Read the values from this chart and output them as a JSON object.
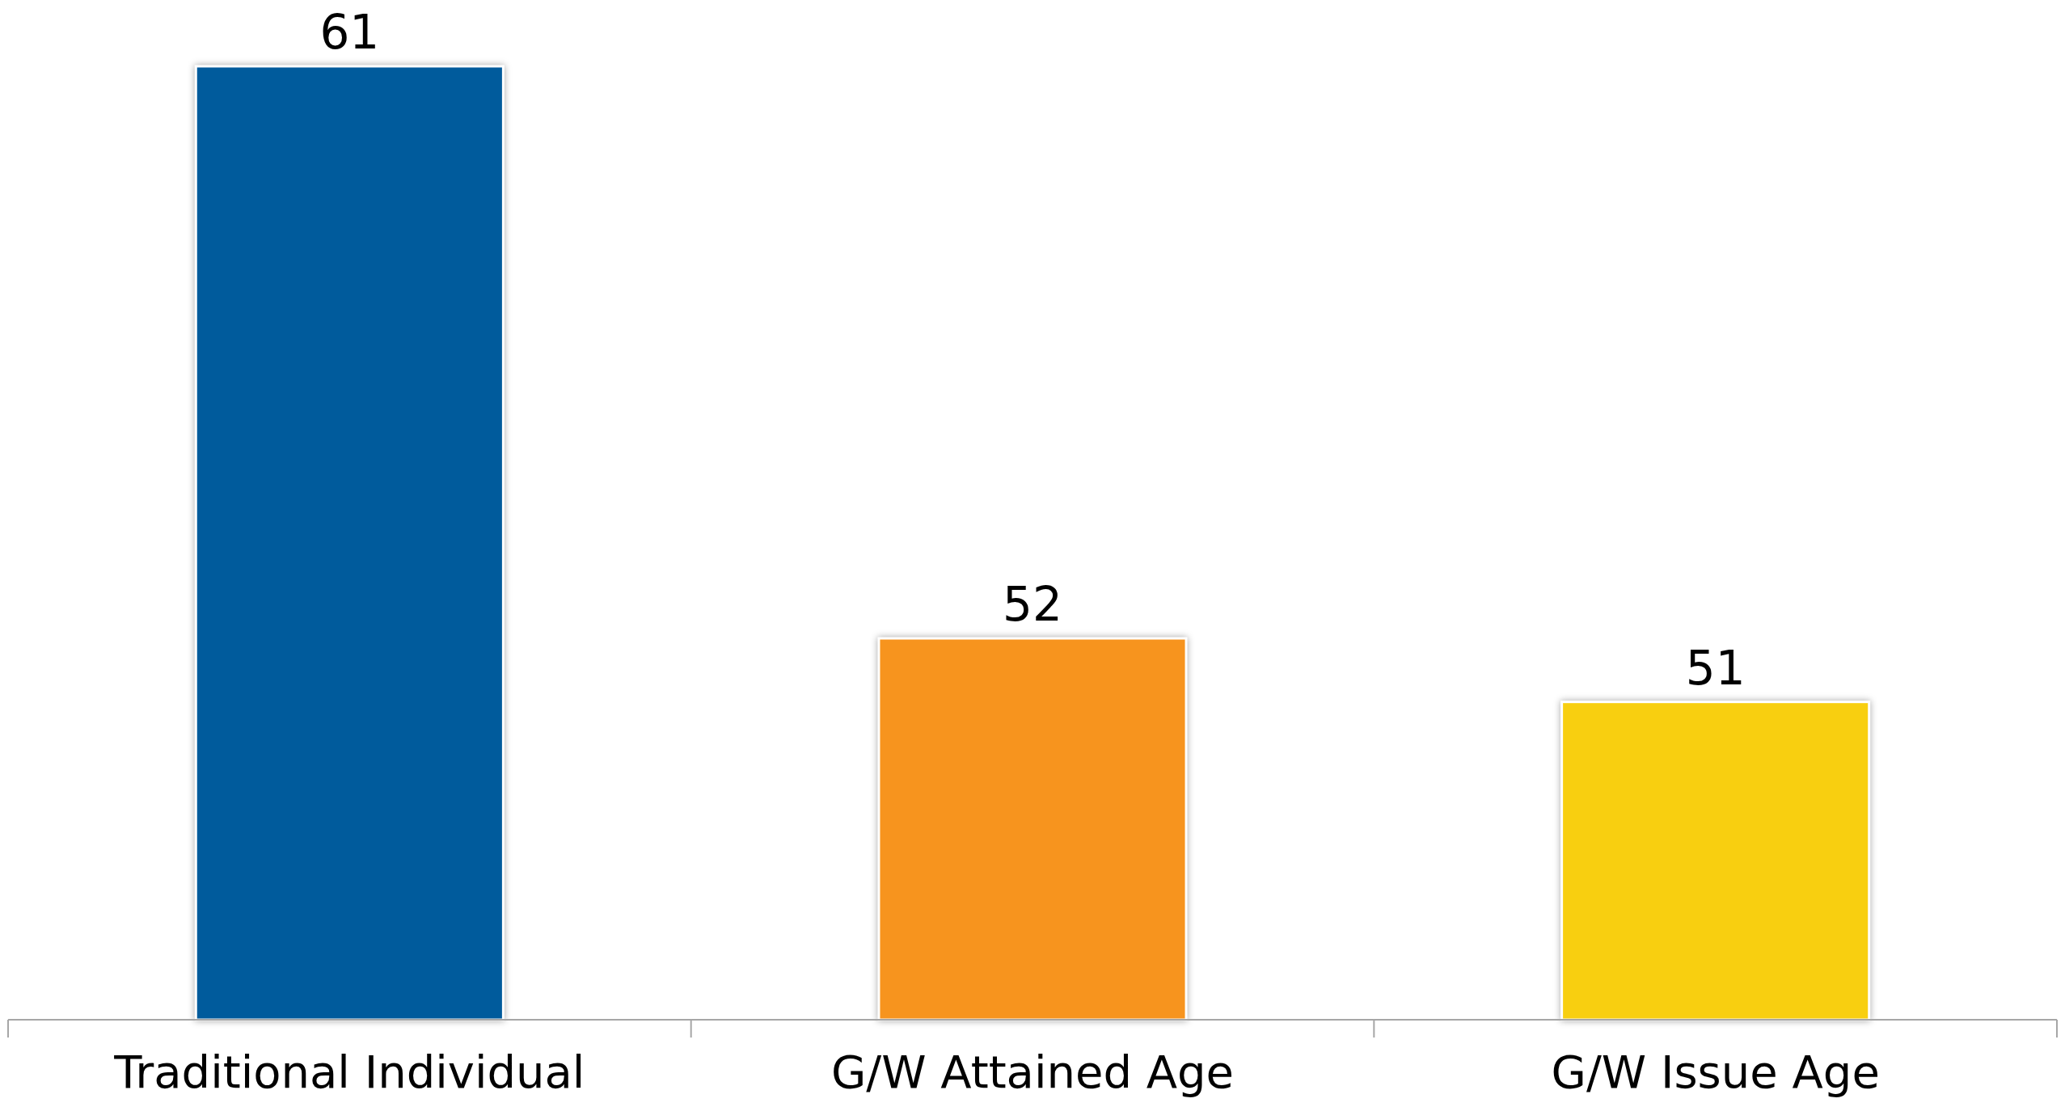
{
  "chart_data": {
    "type": "bar",
    "categories": [
      "Traditional Individual",
      "G/W Attained Age",
      "G/W Issue Age"
    ],
    "values": [
      61,
      52,
      51
    ],
    "colors": [
      "#005b9c",
      "#f7941e",
      "#f8cf10"
    ],
    "ylim": [
      46,
      61
    ],
    "data_labels": true
  }
}
